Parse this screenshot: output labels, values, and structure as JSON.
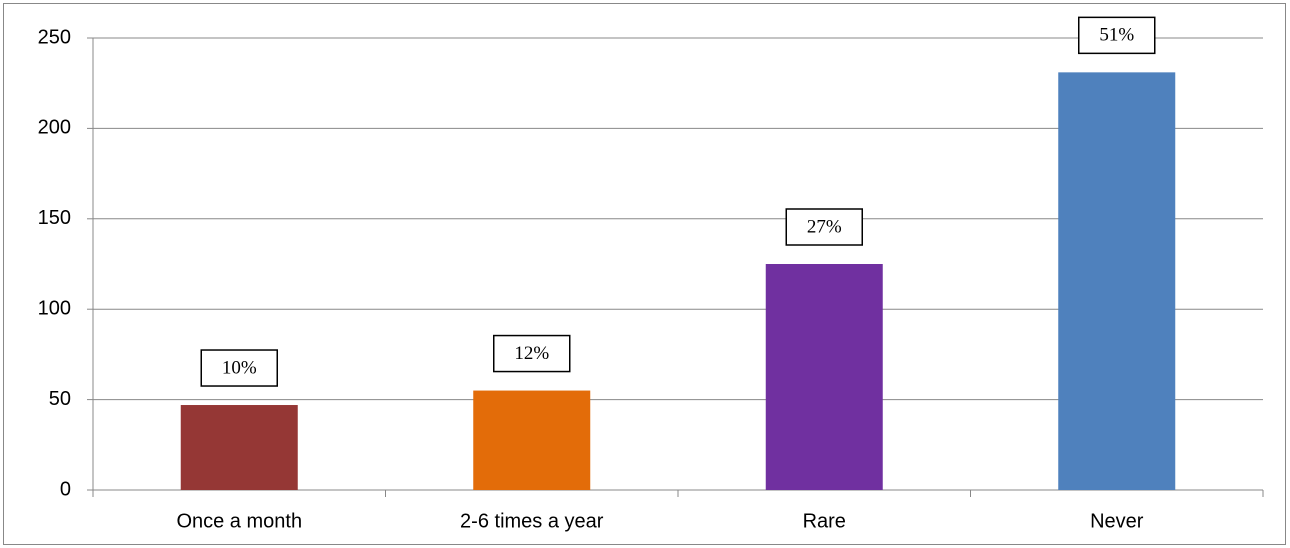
{
  "chart_data": {
    "type": "bar",
    "categories": [
      "Once a month",
      "2-6 times a year",
      "Rare",
      "Never"
    ],
    "values": [
      47,
      55,
      125,
      231
    ],
    "share_labels": [
      "10%",
      "12%",
      "27%",
      "51%"
    ],
    "colors": [
      "#953735",
      "#e36c09",
      "#7030a0",
      "#4f81bd"
    ],
    "ylim": [
      0,
      250
    ],
    "yticks": [
      0,
      50,
      100,
      150,
      200,
      250
    ],
    "grid": true
  }
}
